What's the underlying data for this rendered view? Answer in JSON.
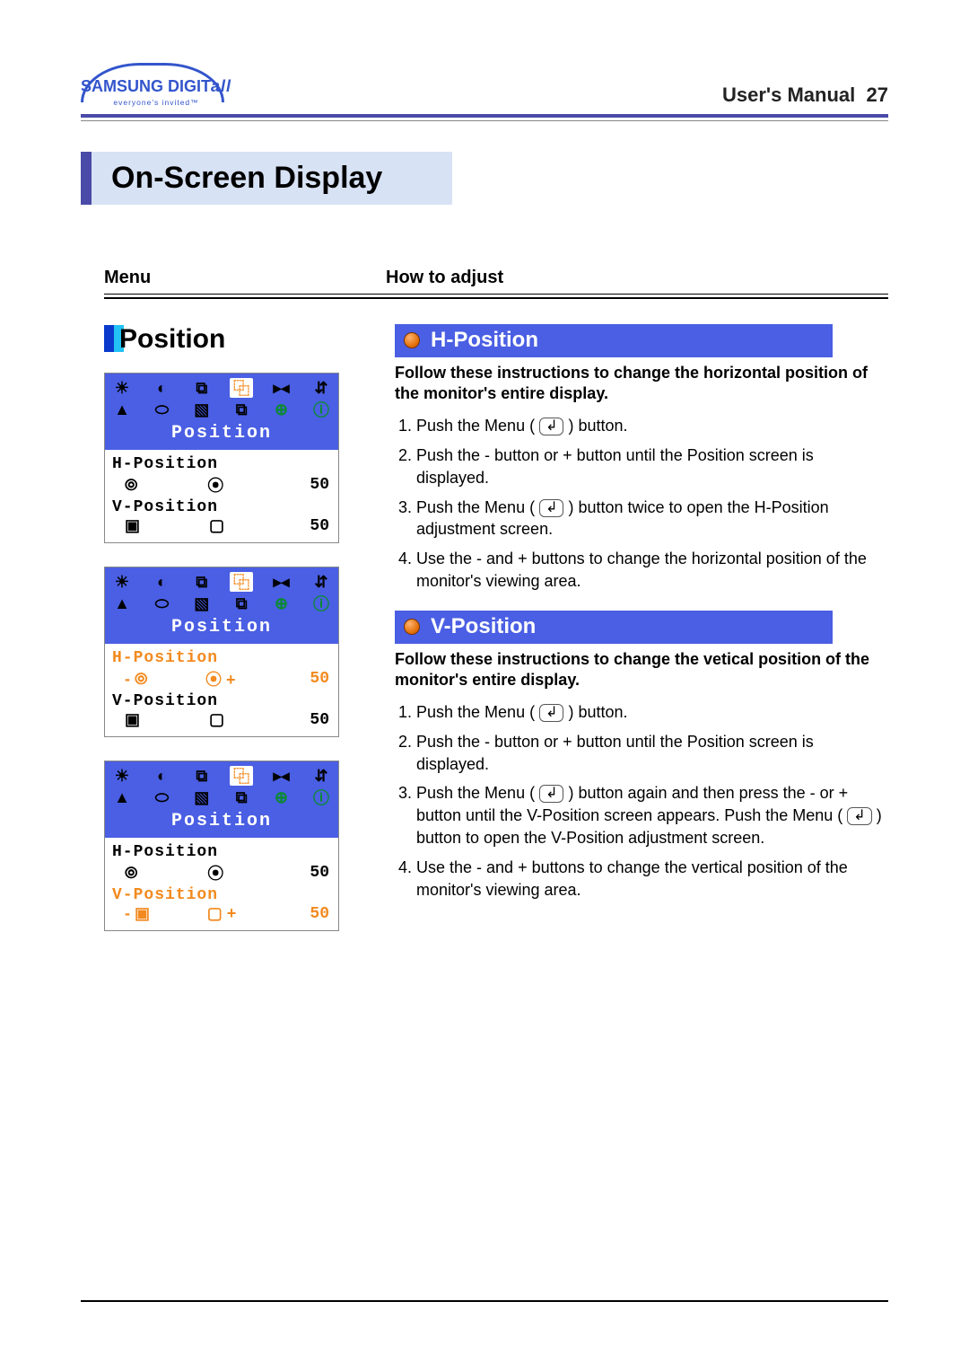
{
  "brand": {
    "name_main": "SAMSUNG",
    "name_sub": "DIGIT",
    "name_it": "all",
    "tagline": "everyone's invited™"
  },
  "header": {
    "title": "User's Manual",
    "page_num": "27"
  },
  "section_title": "On-Screen Display",
  "menu_label": "Menu",
  "howto_label": "How to adjust",
  "position_label": "Position",
  "colors": {
    "brand_blue": "#3355cc",
    "rule_purple": "#4a4aa8",
    "tab_bg": "#d8e2f5",
    "osd_blue": "#4a5fe3",
    "orange": "#f28a1f",
    "green": "#0a8a2f",
    "bullet_gradient_light": "#ffb370",
    "bullet_gradient_dark": "#e06a00"
  },
  "osd_panels": [
    {
      "title": "Position",
      "highlight_icon_index": 3,
      "items": [
        {
          "label": "H-Position",
          "value": "50",
          "left_glyph": "⦾",
          "right_glyph": "⦿",
          "label_hl": false,
          "row_hl": false
        },
        {
          "label": "V-Position",
          "value": "50",
          "left_glyph": "▣",
          "right_glyph": "▢",
          "label_hl": false,
          "row_hl": false
        }
      ]
    },
    {
      "title": "Position",
      "highlight_icon_index": 3,
      "items": [
        {
          "label": "H-Position",
          "value": "50",
          "left_glyph": "- ⦾",
          "right_glyph": "⦿ +",
          "label_hl": true,
          "row_hl": true
        },
        {
          "label": "V-Position",
          "value": "50",
          "left_glyph": "▣",
          "right_glyph": "▢",
          "label_hl": false,
          "row_hl": false
        }
      ]
    },
    {
      "title": "Position",
      "highlight_icon_index": 3,
      "items": [
        {
          "label": "H-Position",
          "value": "50",
          "left_glyph": "⦾",
          "right_glyph": "⦿",
          "label_hl": false,
          "row_hl": false
        },
        {
          "label": "V-Position",
          "value": "50",
          "left_glyph": "- ▣",
          "right_glyph": "▢ +",
          "label_hl": true,
          "row_hl": true
        }
      ]
    }
  ],
  "osd_icons_row1": [
    "☀",
    "◐",
    "⧉",
    "⿻",
    "▸◂",
    "⇵"
  ],
  "osd_icons_row2": [
    "▲",
    "⬭",
    "▧",
    "⧉",
    "⊕",
    "ⓘ"
  ],
  "right": {
    "h": {
      "title": "H-Position",
      "intro": "Follow these instructions to change the horizontal position of the monitor's entire display.",
      "steps": [
        "Push the Menu ( ↵ ) button.",
        "Push the - button or + button until the Position screen is displayed.",
        "Push the Menu ( ↵ ) button twice to open the H-Position adjustment screen.",
        "Use the - and + buttons to change the horizontal position of the monitor's viewing area."
      ]
    },
    "v": {
      "title": "V-Position",
      "intro": "Follow these instructions to change the vetical position of the monitor's entire display.",
      "steps": [
        "Push the Menu ( ↵ ) button.",
        "Push the - button or + button until the Position screen is displayed.",
        "Push the Menu ( ↵ ) button again and then press the - or + button until the V-Position screen appears. Push the Menu ( ↵ ) button to open the V-Position adjustment screen.",
        "Use the - and + buttons to change the vertical position of the monitor's viewing area."
      ]
    }
  }
}
